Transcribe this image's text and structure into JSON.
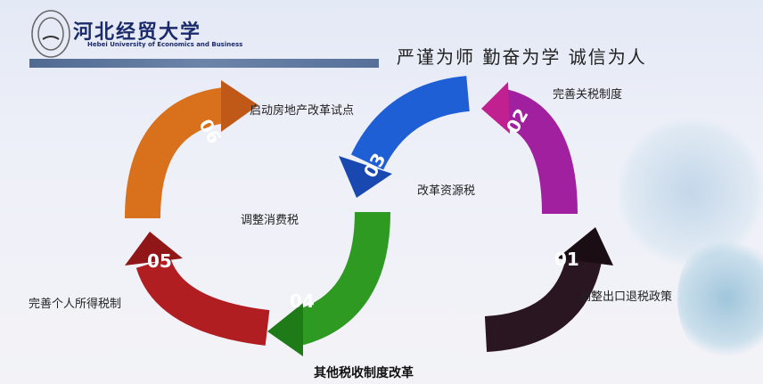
{
  "header": {
    "university_name": "河北经贸大学",
    "university_name_en": "Hebei University of Economics and Business",
    "motto": "严谨为师 勤奋为学 诚信为人"
  },
  "steps": [
    {
      "number": "01",
      "label": "调整出口退税政策",
      "color": "#2a1620"
    },
    {
      "number": "02",
      "label": "完善关税制度",
      "color": "#a020a0"
    },
    {
      "number": "03",
      "label": "改革资源税",
      "color": "#1f5fd6"
    },
    {
      "number": "04",
      "label": "调整消费税",
      "color": "#2e9a22"
    },
    {
      "number": "05",
      "label": "完善个人所得税制",
      "color": "#b01e22"
    },
    {
      "number": "06",
      "label": "启动房地产改革试点",
      "color": "#d8701c"
    }
  ],
  "footer": {
    "caption": "其他税收制度改革"
  }
}
